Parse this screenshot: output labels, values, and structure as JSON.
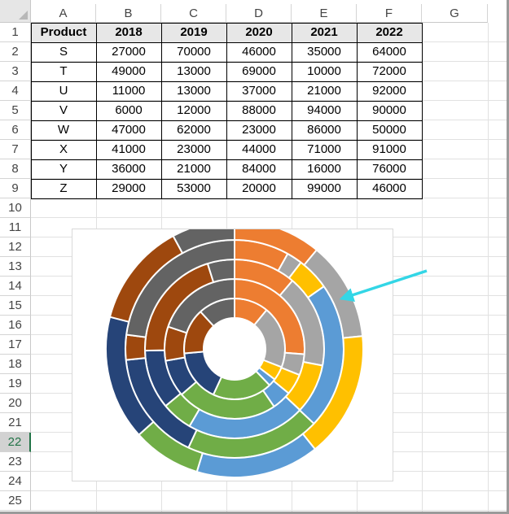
{
  "spreadsheet": {
    "columns": [
      "A",
      "B",
      "C",
      "D",
      "E",
      "F",
      "G"
    ],
    "rows": [
      "1",
      "2",
      "3",
      "4",
      "5",
      "6",
      "7",
      "8",
      "9",
      "10",
      "11",
      "12",
      "13",
      "14",
      "15",
      "16",
      "17",
      "18",
      "19",
      "20",
      "21",
      "22",
      "23",
      "24",
      "25"
    ],
    "active_row": "22",
    "table": {
      "header": [
        "Product",
        "2018",
        "2019",
        "2020",
        "2021",
        "2022"
      ],
      "body": [
        [
          "S",
          "27000",
          "70000",
          "46000",
          "35000",
          "64000"
        ],
        [
          "T",
          "49000",
          "13000",
          "69000",
          "10000",
          "72000"
        ],
        [
          "U",
          "11000",
          "13000",
          "37000",
          "21000",
          "92000"
        ],
        [
          "V",
          "6000",
          "12000",
          "88000",
          "94000",
          "90000"
        ],
        [
          "W",
          "47000",
          "62000",
          "23000",
          "86000",
          "50000"
        ],
        [
          "X",
          "41000",
          "23000",
          "44000",
          "71000",
          "91000"
        ],
        [
          "Y",
          "36000",
          "21000",
          "84000",
          "16000",
          "76000"
        ],
        [
          "Z",
          "29000",
          "53000",
          "20000",
          "99000",
          "46000"
        ]
      ]
    }
  },
  "colors": {
    "header_fill": "#e7e7e7",
    "arrow": "#33d6e6",
    "accent": "#217346"
  },
  "chart_data": {
    "type": "doughnut",
    "title": "",
    "categories": [
      "S",
      "T",
      "U",
      "V",
      "W",
      "X",
      "Y",
      "Z"
    ],
    "category_colors": [
      "#ed7d31",
      "#a5a5a5",
      "#ffc000",
      "#5b9bd5",
      "#70ad47",
      "#264478",
      "#9e480e",
      "#636363"
    ],
    "series": [
      {
        "name": "2018",
        "values": [
          27000,
          49000,
          11000,
          6000,
          47000,
          41000,
          36000,
          29000
        ]
      },
      {
        "name": "2019",
        "values": [
          70000,
          13000,
          13000,
          12000,
          62000,
          23000,
          21000,
          53000
        ]
      },
      {
        "name": "2020",
        "values": [
          46000,
          69000,
          37000,
          88000,
          23000,
          44000,
          84000,
          20000
        ]
      },
      {
        "name": "2021",
        "values": [
          35000,
          10000,
          21000,
          94000,
          86000,
          71000,
          16000,
          99000
        ]
      },
      {
        "name": "2022",
        "values": [
          64000,
          72000,
          92000,
          90000,
          50000,
          91000,
          76000,
          46000
        ]
      }
    ],
    "legend": "none",
    "annotation": "arrow-pointing-to-outer-ring"
  }
}
